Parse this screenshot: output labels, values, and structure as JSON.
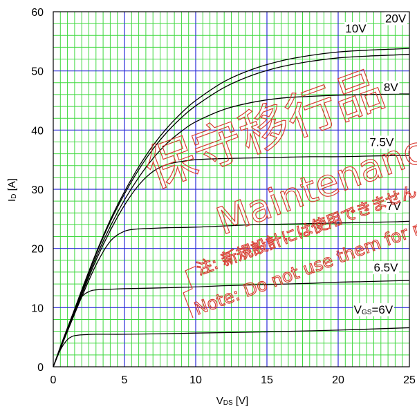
{
  "chart_data": {
    "type": "line",
    "xlabel": {
      "main": "V",
      "sub": "DS",
      "unit": " [V]"
    },
    "ylabel": {
      "main": "I",
      "sub": "D",
      "unit": " [A]"
    },
    "xlim": [
      0,
      25
    ],
    "ylim": [
      0,
      60
    ],
    "x_ticks": [
      "0",
      "5",
      "10",
      "15",
      "20",
      "25"
    ],
    "y_ticks": [
      "0",
      "10",
      "20",
      "30",
      "40",
      "50",
      "60"
    ],
    "grid": {
      "major": true,
      "minor": true,
      "major_color": "#2a2ad8",
      "minor_color": "#3fd83f"
    },
    "series": [
      {
        "name": "20V",
        "x": [
          0,
          1,
          2,
          3,
          4,
          5,
          6,
          7,
          8,
          9,
          10,
          12,
          14,
          16,
          18,
          20,
          22,
          24,
          25
        ],
        "y": [
          0,
          6.5,
          13,
          19.2,
          24.8,
          29.6,
          33.8,
          37.4,
          40.4,
          42.9,
          45,
          48.2,
          50.3,
          51.7,
          52.6,
          53.2,
          53.5,
          53.7,
          53.8
        ]
      },
      {
        "name": "10V",
        "x": [
          0,
          1,
          2,
          3,
          4,
          5,
          6,
          7,
          8,
          9,
          10,
          12,
          14,
          16,
          18,
          20,
          22,
          24,
          25
        ],
        "y": [
          0,
          6.4,
          12.8,
          19,
          24.5,
          29.2,
          33.3,
          36.8,
          39.7,
          42.1,
          44.1,
          47.2,
          49.3,
          50.7,
          51.6,
          52.2,
          52.5,
          52.7,
          52.8
        ]
      },
      {
        "name": "8V",
        "x": [
          0,
          1,
          2,
          3,
          4,
          5,
          6,
          7,
          8,
          9,
          10,
          12,
          14,
          16,
          18,
          20,
          22,
          24,
          25
        ],
        "y": [
          0,
          6.3,
          12.5,
          18.5,
          23.7,
          28.2,
          32,
          35.2,
          37.8,
          39.8,
          41.4,
          43.5,
          44.7,
          45.4,
          45.7,
          45.9,
          46,
          46.1,
          46.1
        ]
      },
      {
        "name": "7.5V",
        "x": [
          0,
          1,
          2,
          3,
          4,
          5,
          6,
          7,
          8,
          9,
          10,
          12,
          14,
          16,
          18,
          20,
          22,
          24,
          25
        ],
        "y": [
          0,
          6.2,
          12.2,
          18,
          23,
          27.3,
          30.7,
          33,
          34.2,
          34.7,
          35,
          35.2,
          35.3,
          35.4,
          35.5,
          35.5,
          35.6,
          35.7,
          35.7
        ]
      },
      {
        "name": "7V",
        "x": [
          0,
          1,
          2,
          3,
          4,
          5,
          6,
          7,
          8,
          10,
          12,
          14,
          16,
          18,
          20,
          22,
          24,
          25
        ],
        "y": [
          0,
          6,
          11.8,
          17.2,
          21.2,
          22.9,
          23.3,
          23.4,
          23.5,
          23.6,
          23.8,
          24,
          24.1,
          24.2,
          24.3,
          24.4,
          24.5,
          24.6
        ]
      },
      {
        "name": "6.5V",
        "x": [
          0,
          0.5,
          1,
          1.5,
          2,
          2.5,
          3,
          4,
          5,
          7,
          10,
          12,
          15,
          18,
          20,
          22,
          25
        ],
        "y": [
          0,
          3.4,
          6.6,
          9.6,
          11.8,
          12.7,
          13,
          13.1,
          13.2,
          13.3,
          13.5,
          13.7,
          13.9,
          14.1,
          14.3,
          14.4,
          14.6
        ]
      },
      {
        "name": "6V",
        "x": [
          0,
          0.3,
          0.6,
          1,
          1.3,
          1.6,
          2,
          3,
          5,
          8,
          10,
          15,
          20,
          25
        ],
        "y": [
          0,
          1.8,
          3.3,
          4.6,
          5.1,
          5.3,
          5.4,
          5.5,
          5.5,
          5.6,
          5.7,
          5.9,
          6.2,
          6.6
        ]
      }
    ],
    "curve_labels": [
      {
        "text": "20V",
        "x": 23.3,
        "y": 58.2
      },
      {
        "text": "10V",
        "x": 20.5,
        "y": 56.5
      },
      {
        "text": "8V",
        "x": 23.2,
        "y": 46.6
      },
      {
        "text": "7.5V",
        "x": 22.2,
        "y": 37.3
      },
      {
        "text": "7V",
        "x": 23.4,
        "y": 26.5
      },
      {
        "text": "6.5V",
        "x": 22.5,
        "y": 16.1
      }
    ],
    "gate_label": {
      "main": "V",
      "sub": "GS",
      "suffix": "=6V",
      "x": 21.1,
      "y": 9.0
    }
  },
  "watermark": {
    "line1": "保守移行品",
    "line2": "Maintenance",
    "line3": "注: 新規設計には使用できません",
    "line4": "Note: Do not use them for new design",
    "color": "#d9342b"
  }
}
